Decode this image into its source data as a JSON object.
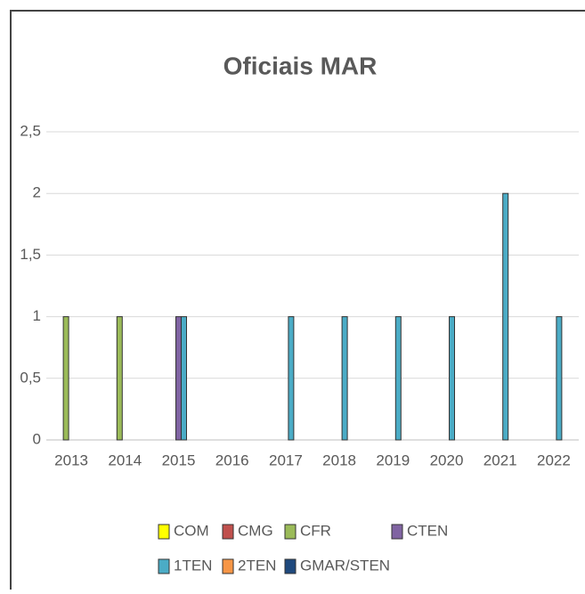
{
  "chart_data": {
    "type": "bar",
    "title": "Oficiais MAR",
    "categories": [
      "2013",
      "2014",
      "2015",
      "2016",
      "2017",
      "2018",
      "2019",
      "2020",
      "2021",
      "2022"
    ],
    "series": [
      {
        "name": "COM",
        "color": "#ffff00",
        "values": [
          0,
          0,
          0,
          0,
          0,
          0,
          0,
          0,
          0,
          0
        ]
      },
      {
        "name": "CMG",
        "color": "#c0504d",
        "values": [
          0,
          0,
          0,
          0,
          0,
          0,
          0,
          0,
          0,
          0
        ]
      },
      {
        "name": "CFR",
        "color": "#9bbb59",
        "values": [
          1,
          1,
          0,
          0,
          0,
          0,
          0,
          0,
          0,
          0
        ]
      },
      {
        "name": "CTEN",
        "color": "#8064a2",
        "values": [
          0,
          0,
          1,
          0,
          0,
          0,
          0,
          0,
          0,
          0
        ]
      },
      {
        "name": "1TEN",
        "color": "#4bacc6",
        "values": [
          0,
          0,
          1,
          0,
          1,
          1,
          1,
          1,
          2,
          1
        ]
      },
      {
        "name": "2TEN",
        "color": "#f79646",
        "values": [
          0,
          0,
          0,
          0,
          0,
          0,
          0,
          0,
          0,
          0
        ]
      },
      {
        "name": "GMAR/STEN",
        "color": "#1f497d",
        "values": [
          0,
          0,
          0,
          0,
          0,
          0,
          0,
          0,
          0,
          0
        ]
      }
    ],
    "ylim": [
      0,
      2.5
    ],
    "yticks": [
      0,
      {
        "value": 0.5,
        "label": "0,5"
      },
      1,
      {
        "value": 1.5,
        "label": "1,5"
      },
      2,
      {
        "value": 2.5,
        "label": "2,5"
      }
    ],
    "grid": true,
    "legend": "bottom"
  }
}
